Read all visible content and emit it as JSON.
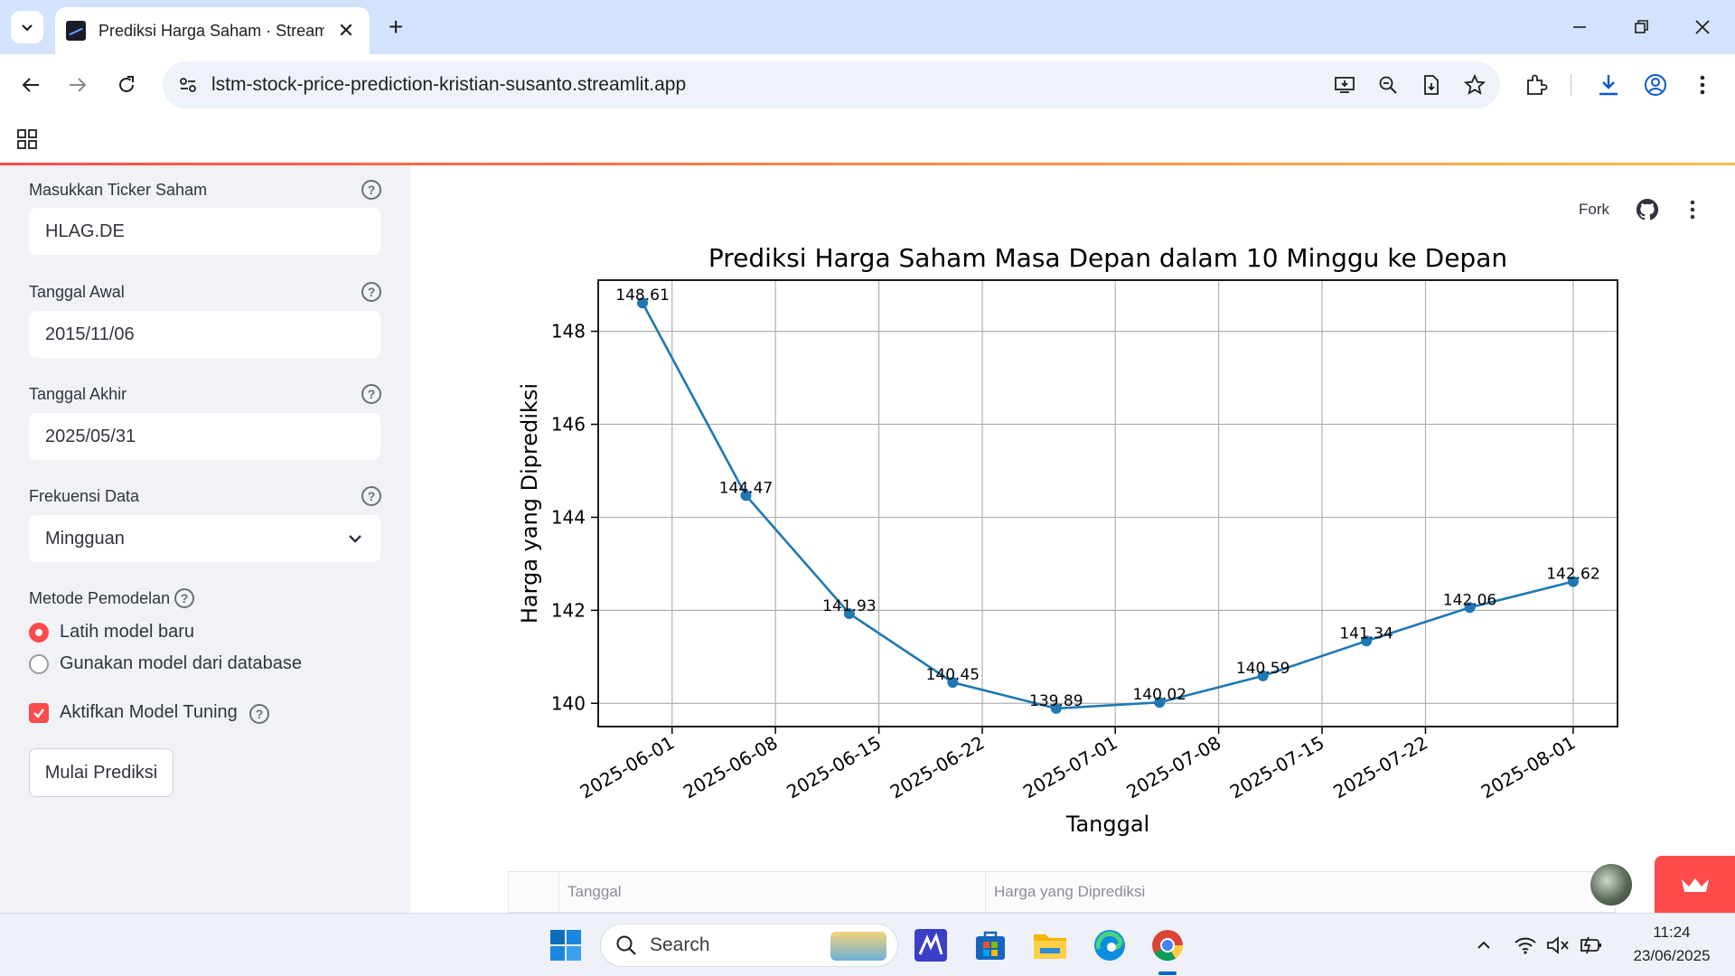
{
  "browser": {
    "tab_title": "Prediksi Harga Saham · Streamlit",
    "url": "lstm-stock-price-prediction-kristian-susanto.streamlit.app"
  },
  "sidebar": {
    "ticker_label": "Masukkan Ticker Saham",
    "ticker_value": "HLAG.DE",
    "start_label": "Tanggal Awal",
    "start_value": "2015/11/06",
    "end_label": "Tanggal Akhir",
    "end_value": "2025/05/31",
    "frequency_label": "Frekuensi Data",
    "frequency_value": "Mingguan",
    "method_label": "Metode Pemodelan",
    "method_options": [
      "Latih model baru",
      "Gunakan model dari database"
    ],
    "method_selected": 0,
    "tuning_label": "Aktifkan Model Tuning",
    "tuning_checked": true,
    "predict_button": "Mulai Prediksi"
  },
  "header": {
    "fork_label": "Fork"
  },
  "chart_data": {
    "type": "line",
    "title": "Prediksi Harga Saham Masa Depan dalam 10 Minggu ke Depan",
    "xlabel": "Tanggal",
    "ylabel": "Harga yang Diprediksi",
    "x": [
      "2025-05-30",
      "2025-06-06",
      "2025-06-13",
      "2025-06-20",
      "2025-06-27",
      "2025-07-04",
      "2025-07-11",
      "2025-07-18",
      "2025-07-25",
      "2025-08-01"
    ],
    "values": [
      148.61,
      144.47,
      141.93,
      140.45,
      139.89,
      140.02,
      140.59,
      141.34,
      142.06,
      142.62
    ],
    "labels": [
      "148.61",
      "144.47",
      "141.93",
      "140.45",
      "139.89",
      "140.02",
      "140.59",
      "141.34",
      "142.06",
      "142.62"
    ],
    "x_ticks": [
      "2025-06-01",
      "2025-06-08",
      "2025-06-15",
      "2025-06-22",
      "2025-07-01",
      "2025-07-08",
      "2025-07-15",
      "2025-07-22",
      "2025-08-01"
    ],
    "y_ticks": [
      140,
      142,
      144,
      146,
      148
    ],
    "xlim": [
      "2025-05-27",
      "2025-08-04"
    ],
    "ylim": [
      139.5,
      149.1
    ],
    "grid": true,
    "color": "#1f77b4"
  },
  "table": {
    "columns": [
      "Tanggal",
      "Harga yang Diprediksi"
    ]
  },
  "taskbar": {
    "search_placeholder": "Search",
    "time": "11:24",
    "date": "23/06/2025"
  }
}
